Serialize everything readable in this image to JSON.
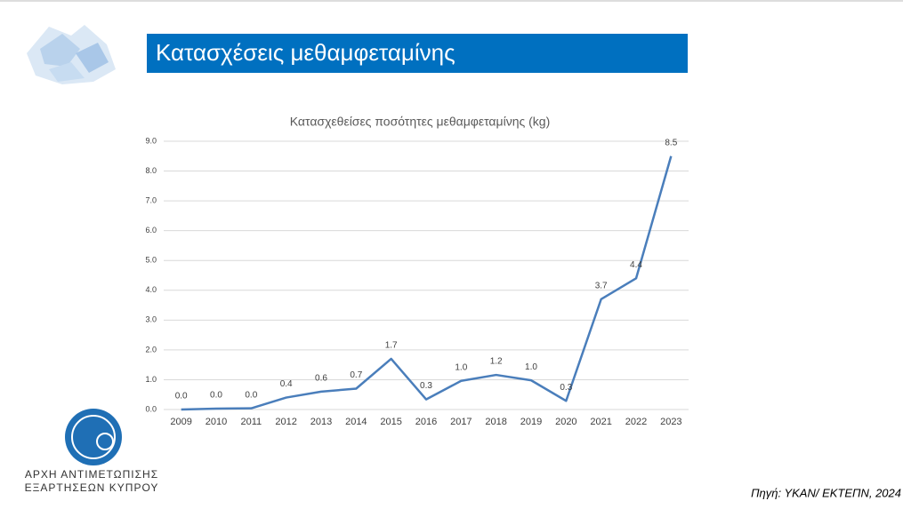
{
  "slide": {
    "title": "Κατασχέσεις μεθαμφεταμίνης",
    "logo_line1": "ΑΡΧΗ ΑΝΤΙΜΕΤΩΠΙΣΗΣ",
    "logo_line2": "ΕΞΑΡΤΗΣΕΩΝ ΚΥΠΡΟΥ",
    "source": "Πηγή: ΥΚΑΝ/ ΕΚΤΕΠΝ, 2024"
  },
  "chart_data": {
    "type": "line",
    "title": "Κατασχεθείσες ποσότητες μεθαμφεταμίνης (kg)",
    "categories": [
      "2009",
      "2010",
      "2011",
      "2012",
      "2013",
      "2014",
      "2015",
      "2016",
      "2017",
      "2018",
      "2019",
      "2020",
      "2021",
      "2022",
      "2023"
    ],
    "values": [
      0,
      0.03,
      0.04,
      0.4,
      0.6,
      0.7,
      1.7,
      0.34,
      0.96,
      1.16,
      0.98,
      0.29,
      3.7,
      4.4,
      8.5
    ],
    "value_labels": [
      "0.0",
      "0.0",
      "0.0",
      "0.4",
      "0.6",
      "0.7",
      "1.7",
      "0.3",
      "1.0",
      "1.2",
      "1.0",
      "0.3",
      "3.7",
      "4.4",
      "8.5"
    ],
    "color": "#4a7ebb",
    "ylim": [
      0,
      9
    ],
    "yticks": [
      {
        "value": 0,
        "label": "0.0"
      },
      {
        "value": 1,
        "label": "1.0"
      },
      {
        "value": 2,
        "label": "2.0"
      },
      {
        "value": 3,
        "label": "3.0"
      },
      {
        "value": 4,
        "label": "4.0"
      },
      {
        "value": 5,
        "label": "5.0"
      },
      {
        "value": 6,
        "label": "6.0"
      },
      {
        "value": 7,
        "label": "7.0"
      },
      {
        "value": 8,
        "label": "8.0"
      },
      {
        "value": 9,
        "label": "9.0"
      }
    ],
    "grid": true
  }
}
